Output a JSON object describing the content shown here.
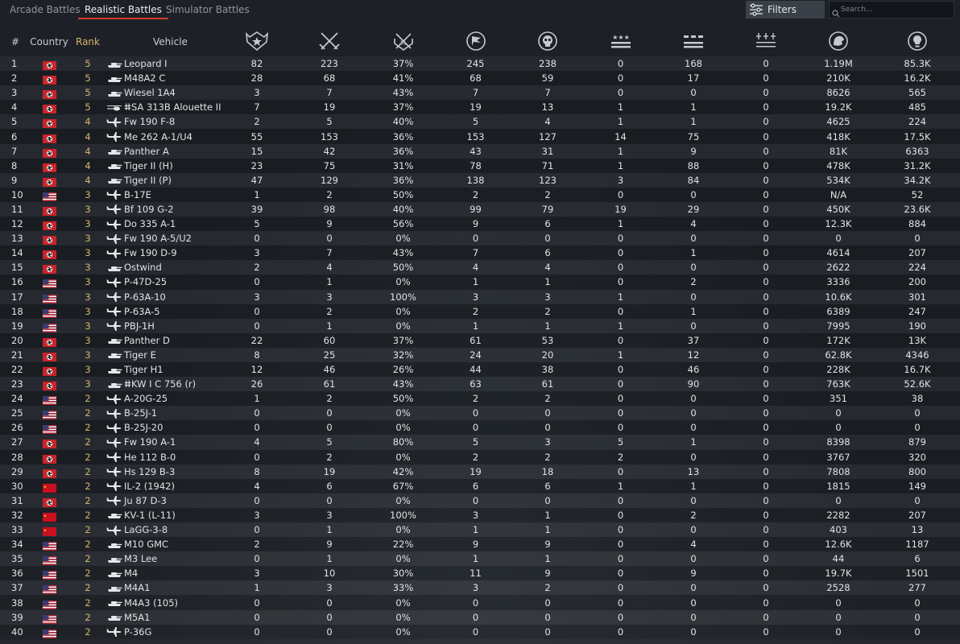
{
  "tabs": [
    {
      "label": "Arcade Battles",
      "active": false
    },
    {
      "label": "Realistic Battles",
      "active": true
    },
    {
      "label": "Simulator Battles",
      "active": false
    }
  ],
  "filters_label": "Filters",
  "search_placeholder": "Search...",
  "headers": {
    "num": "#",
    "country": "Country",
    "rank": "Rank",
    "vehicle": "Vehicle"
  },
  "stat_icons": [
    "battles-icon",
    "victories-icon",
    "win-rate-icon",
    "respawns-icon",
    "deaths-icon",
    "air-targets-destroyed-icon",
    "ground-targets-destroyed-icon",
    "naval-targets-destroyed-icon",
    "silver-lions-icon",
    "research-points-icon"
  ],
  "flag_colors": {
    "germany": "#c8242a",
    "usa": "#b22234",
    "ussr": "#c8101f"
  },
  "rows": [
    {
      "n": "1",
      "country": "germany",
      "rank": "5",
      "type": "tank",
      "name": "Leopard I",
      "s": [
        "82",
        "223",
        "37%",
        "245",
        "238",
        "0",
        "168",
        "0",
        "1.19M",
        "85.3K"
      ]
    },
    {
      "n": "2",
      "country": "germany",
      "rank": "5",
      "type": "tank",
      "name": "M48A2 C",
      "s": [
        "28",
        "68",
        "41%",
        "68",
        "59",
        "0",
        "17",
        "0",
        "210K",
        "16.2K"
      ]
    },
    {
      "n": "3",
      "country": "germany",
      "rank": "5",
      "type": "tank",
      "name": "Wiesel 1A4",
      "s": [
        "3",
        "7",
        "43%",
        "7",
        "7",
        "0",
        "0",
        "0",
        "8626",
        "565"
      ]
    },
    {
      "n": "4",
      "country": "germany",
      "rank": "5",
      "type": "heli",
      "name": "ⵌSA 313B Alouette II",
      "s": [
        "7",
        "19",
        "37%",
        "19",
        "13",
        "1",
        "1",
        "0",
        "19.2K",
        "485"
      ]
    },
    {
      "n": "5",
      "country": "germany",
      "rank": "4",
      "type": "plane",
      "name": "Fw 190 F-8",
      "s": [
        "2",
        "5",
        "40%",
        "5",
        "4",
        "1",
        "1",
        "0",
        "4625",
        "224"
      ]
    },
    {
      "n": "6",
      "country": "germany",
      "rank": "4",
      "type": "plane",
      "name": "Me 262 A-1/U4",
      "s": [
        "55",
        "153",
        "36%",
        "153",
        "127",
        "14",
        "75",
        "0",
        "418K",
        "17.5K"
      ]
    },
    {
      "n": "7",
      "country": "germany",
      "rank": "4",
      "type": "tank",
      "name": "Panther A",
      "s": [
        "15",
        "42",
        "36%",
        "43",
        "31",
        "1",
        "9",
        "0",
        "81K",
        "6363"
      ]
    },
    {
      "n": "8",
      "country": "germany",
      "rank": "4",
      "type": "tank",
      "name": "Tiger II (H)",
      "s": [
        "23",
        "75",
        "31%",
        "78",
        "71",
        "1",
        "88",
        "0",
        "478K",
        "31.2K"
      ]
    },
    {
      "n": "9",
      "country": "germany",
      "rank": "4",
      "type": "tank",
      "name": "Tiger II (P)",
      "s": [
        "47",
        "129",
        "36%",
        "138",
        "123",
        "3",
        "84",
        "0",
        "534K",
        "34.2K"
      ]
    },
    {
      "n": "10",
      "country": "usa",
      "rank": "3",
      "type": "plane",
      "name": "B-17E",
      "s": [
        "1",
        "2",
        "50%",
        "2",
        "2",
        "0",
        "0",
        "0",
        "N/A",
        "52"
      ]
    },
    {
      "n": "11",
      "country": "germany",
      "rank": "3",
      "type": "plane",
      "name": "Bf 109 G-2",
      "s": [
        "39",
        "98",
        "40%",
        "99",
        "79",
        "19",
        "29",
        "0",
        "450K",
        "23.6K"
      ]
    },
    {
      "n": "12",
      "country": "germany",
      "rank": "3",
      "type": "plane",
      "name": "Do 335 A-1",
      "s": [
        "5",
        "9",
        "56%",
        "9",
        "6",
        "1",
        "4",
        "0",
        "12.3K",
        "884"
      ]
    },
    {
      "n": "13",
      "country": "germany",
      "rank": "3",
      "type": "plane",
      "name": "Fw 190 A-5/U2",
      "s": [
        "0",
        "0",
        "0%",
        "0",
        "0",
        "0",
        "0",
        "0",
        "0",
        "0"
      ]
    },
    {
      "n": "14",
      "country": "germany",
      "rank": "3",
      "type": "plane",
      "name": "Fw 190 D-9",
      "s": [
        "3",
        "7",
        "43%",
        "7",
        "6",
        "0",
        "1",
        "0",
        "4614",
        "207"
      ]
    },
    {
      "n": "15",
      "country": "germany",
      "rank": "3",
      "type": "tank",
      "name": "Ostwind",
      "s": [
        "2",
        "4",
        "50%",
        "4",
        "4",
        "0",
        "0",
        "0",
        "2622",
        "224"
      ]
    },
    {
      "n": "16",
      "country": "usa",
      "rank": "3",
      "type": "plane",
      "name": "P-47D-25",
      "s": [
        "0",
        "1",
        "0%",
        "1",
        "1",
        "0",
        "2",
        "0",
        "3336",
        "200"
      ]
    },
    {
      "n": "17",
      "country": "usa",
      "rank": "3",
      "type": "plane",
      "name": "P-63A-10",
      "s": [
        "3",
        "3",
        "100%",
        "3",
        "3",
        "1",
        "0",
        "0",
        "10.6K",
        "301"
      ]
    },
    {
      "n": "18",
      "country": "usa",
      "rank": "3",
      "type": "plane",
      "name": "P-63A-5",
      "s": [
        "0",
        "2",
        "0%",
        "2",
        "2",
        "0",
        "1",
        "0",
        "6389",
        "247"
      ]
    },
    {
      "n": "19",
      "country": "usa",
      "rank": "3",
      "type": "plane",
      "name": "PBJ-1H",
      "s": [
        "0",
        "1",
        "0%",
        "1",
        "1",
        "1",
        "0",
        "0",
        "7995",
        "190"
      ]
    },
    {
      "n": "20",
      "country": "germany",
      "rank": "3",
      "type": "tank",
      "name": "Panther D",
      "s": [
        "22",
        "60",
        "37%",
        "61",
        "53",
        "0",
        "37",
        "0",
        "172K",
        "13K"
      ]
    },
    {
      "n": "21",
      "country": "germany",
      "rank": "3",
      "type": "tank",
      "name": "Tiger E",
      "s": [
        "8",
        "25",
        "32%",
        "24",
        "20",
        "1",
        "12",
        "0",
        "62.8K",
        "4346"
      ]
    },
    {
      "n": "22",
      "country": "germany",
      "rank": "3",
      "type": "tank",
      "name": "Tiger H1",
      "s": [
        "12",
        "46",
        "26%",
        "44",
        "38",
        "0",
        "46",
        "0",
        "228K",
        "16.7K"
      ]
    },
    {
      "n": "23",
      "country": "germany",
      "rank": "3",
      "type": "tank",
      "name": "ⵌKW I C 756 (r)",
      "s": [
        "26",
        "61",
        "43%",
        "63",
        "61",
        "0",
        "90",
        "0",
        "763K",
        "52.6K"
      ]
    },
    {
      "n": "24",
      "country": "usa",
      "rank": "2",
      "type": "plane",
      "name": "A-20G-25",
      "s": [
        "1",
        "2",
        "50%",
        "2",
        "2",
        "0",
        "0",
        "0",
        "351",
        "38"
      ]
    },
    {
      "n": "25",
      "country": "usa",
      "rank": "2",
      "type": "plane",
      "name": "B-25J-1",
      "s": [
        "0",
        "0",
        "0%",
        "0",
        "0",
        "0",
        "0",
        "0",
        "0",
        "0"
      ]
    },
    {
      "n": "26",
      "country": "usa",
      "rank": "2",
      "type": "plane",
      "name": "B-25J-20",
      "s": [
        "0",
        "0",
        "0%",
        "0",
        "0",
        "0",
        "0",
        "0",
        "0",
        "0"
      ]
    },
    {
      "n": "27",
      "country": "germany",
      "rank": "2",
      "type": "plane",
      "name": "Fw 190 A-1",
      "s": [
        "4",
        "5",
        "80%",
        "5",
        "3",
        "5",
        "1",
        "0",
        "8398",
        "879"
      ]
    },
    {
      "n": "28",
      "country": "germany",
      "rank": "2",
      "type": "plane",
      "name": "He 112 B-0",
      "s": [
        "0",
        "2",
        "0%",
        "2",
        "2",
        "2",
        "0",
        "0",
        "3767",
        "320"
      ]
    },
    {
      "n": "29",
      "country": "germany",
      "rank": "2",
      "type": "plane",
      "name": "Hs 129 B-3",
      "s": [
        "8",
        "19",
        "42%",
        "19",
        "18",
        "0",
        "13",
        "0",
        "7808",
        "800"
      ]
    },
    {
      "n": "30",
      "country": "ussr",
      "rank": "2",
      "type": "plane",
      "name": "IL-2 (1942)",
      "s": [
        "4",
        "6",
        "67%",
        "6",
        "6",
        "1",
        "1",
        "0",
        "1815",
        "149"
      ]
    },
    {
      "n": "31",
      "country": "germany",
      "rank": "2",
      "type": "plane",
      "name": "Ju 87 D-3",
      "s": [
        "0",
        "0",
        "0%",
        "0",
        "0",
        "0",
        "0",
        "0",
        "0",
        "0"
      ]
    },
    {
      "n": "32",
      "country": "ussr",
      "rank": "2",
      "type": "tank",
      "name": "KV-1 (L-11)",
      "s": [
        "3",
        "3",
        "100%",
        "3",
        "1",
        "0",
        "2",
        "0",
        "2282",
        "207"
      ]
    },
    {
      "n": "33",
      "country": "ussr",
      "rank": "2",
      "type": "plane",
      "name": "LaGG-3-8",
      "s": [
        "0",
        "1",
        "0%",
        "1",
        "1",
        "0",
        "0",
        "0",
        "403",
        "13"
      ]
    },
    {
      "n": "34",
      "country": "usa",
      "rank": "2",
      "type": "tank",
      "name": "M10 GMC",
      "s": [
        "2",
        "9",
        "22%",
        "9",
        "9",
        "0",
        "4",
        "0",
        "12.6K",
        "1187"
      ]
    },
    {
      "n": "35",
      "country": "usa",
      "rank": "2",
      "type": "tank",
      "name": "M3 Lee",
      "s": [
        "0",
        "1",
        "0%",
        "1",
        "1",
        "0",
        "0",
        "0",
        "44",
        "6"
      ]
    },
    {
      "n": "36",
      "country": "usa",
      "rank": "2",
      "type": "tank",
      "name": "M4",
      "s": [
        "3",
        "10",
        "30%",
        "11",
        "9",
        "0",
        "9",
        "0",
        "19.7K",
        "1501"
      ]
    },
    {
      "n": "37",
      "country": "usa",
      "rank": "2",
      "type": "tank",
      "name": "M4A1",
      "s": [
        "1",
        "3",
        "33%",
        "3",
        "2",
        "0",
        "0",
        "0",
        "2528",
        "277"
      ]
    },
    {
      "n": "38",
      "country": "usa",
      "rank": "2",
      "type": "tank",
      "name": "M4A3 (105)",
      "s": [
        "0",
        "0",
        "0%",
        "0",
        "0",
        "0",
        "0",
        "0",
        "0",
        "0"
      ]
    },
    {
      "n": "39",
      "country": "usa",
      "rank": "2",
      "type": "tank",
      "name": "M5A1",
      "s": [
        "0",
        "0",
        "0%",
        "0",
        "0",
        "0",
        "0",
        "0",
        "0",
        "0"
      ]
    },
    {
      "n": "40",
      "country": "usa",
      "rank": "2",
      "type": "plane",
      "name": "P-36G",
      "s": [
        "0",
        "0",
        "0%",
        "0",
        "0",
        "0",
        "0",
        "0",
        "0",
        "0"
      ]
    }
  ]
}
